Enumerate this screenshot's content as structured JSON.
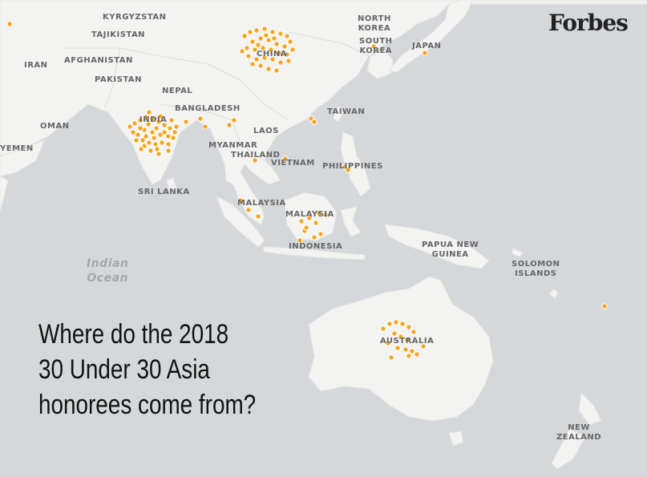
{
  "brand": "Forbes",
  "headline": [
    "Where do the 2018",
    "30 Under 30 Asia",
    "honorees come from?"
  ],
  "ocean_label": [
    "Indian",
    "Ocean"
  ],
  "country_labels": {
    "kyrgyzstan": "KYRGYZSTAN",
    "tajikistan": "TAJIKISTAN",
    "iran": "IRAN",
    "afghanistan": "AFGHANISTAN",
    "pakistan": "PAKISTAN",
    "nepal": "NEPAL",
    "bangladesh": "BANGLADESH",
    "india": "INDIA",
    "oman": "OMAN",
    "yemen": "YEMEN",
    "sri_lanka": "SRI LANKA",
    "china": "CHINA",
    "north_korea": [
      "NORTH",
      "KOREA"
    ],
    "south_korea": [
      "SOUTH",
      "KOREA"
    ],
    "japan": "JAPAN",
    "taiwan": "TAIWAN",
    "laos": "LAOS",
    "myanmar": "MYANMAR",
    "thailand": "THAILAND",
    "vietnam": "VIETNAM",
    "philippines": "PHILIPPINES",
    "malaysia_west": "MALAYSIA",
    "malaysia_east": "MALAYSIA",
    "indonesia": "INDONESIA",
    "papua_new_guinea": [
      "PAPUA NEW",
      "GUINEA"
    ],
    "solomon_islands": [
      "SOLOMON",
      "ISLANDS"
    ],
    "australia": "AUSTRALIA",
    "new_zealand": [
      "NEW",
      "ZEALAND"
    ]
  },
  "colors": {
    "honoree_dot": "#f5a623",
    "water": "#d5d8da",
    "land": "#f3f3f1"
  },
  "honoree_marker_groups": [
    {
      "place": "China",
      "count": 34
    },
    {
      "place": "India",
      "count": 38
    },
    {
      "place": "Australia",
      "count": 17
    },
    {
      "place": "Indonesia / Malaysia",
      "count": 12
    },
    {
      "place": "Other locations",
      "count": 16
    }
  ]
}
